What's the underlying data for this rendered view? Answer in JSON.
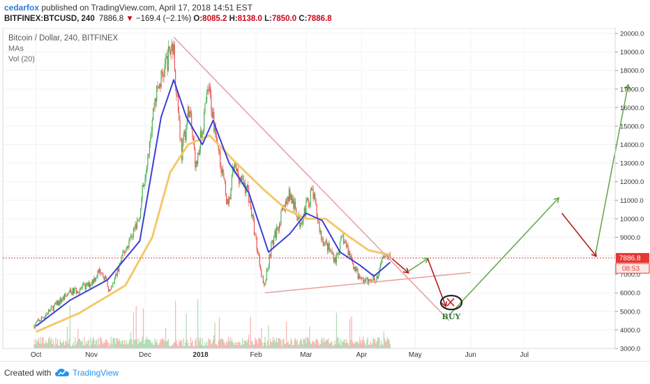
{
  "header": {
    "username": "cedarfox",
    "published_text": "published on TradingView.com, April 17, 2018 14:51 EST",
    "symbol": "BITFINEX:BTCUSD, 240",
    "last": "7886.8",
    "change_arrow": "▼",
    "change": "−169.4 (−2.1%)",
    "o_label": "O:",
    "o": "8085.2",
    "h_label": "H:",
    "h": "8138.0",
    "l_label": "L:",
    "l": "7850.0",
    "c_label": "C:",
    "c": "7886.8"
  },
  "legend": {
    "title": "Bitcoin / Dollar, 240, BITFINEX",
    "indicator1": "MAs",
    "indicator2": "Vol (20)"
  },
  "footer": {
    "created_with": "Created with",
    "brand": "TradingView"
  },
  "colors": {
    "candle_up": "#4caf50",
    "candle_down": "#ef5350",
    "ma_fast": "#3b3fd6",
    "ma_slow": "#f3c96a",
    "trendline": "#e8a2a2",
    "arrow_up": "#6aa84f",
    "arrow_down": "#b71c1c",
    "price_line": "#e53935"
  },
  "chart_data": {
    "type": "candlestick",
    "title": "Bitcoin / Dollar, 240, BITFINEX",
    "ylim": [
      3000,
      20000
    ],
    "y_ticks": [
      3000,
      4000,
      5000,
      6000,
      7000,
      8000,
      9000,
      10000,
      11000,
      12000,
      13000,
      14000,
      15000,
      16000,
      17000,
      18000,
      19000,
      20000
    ],
    "y_tick_labels": [
      "3000.0",
      "4000.0",
      "5000.0",
      "6000.0",
      "7000.0",
      "8000.0",
      "9000.0",
      "10000.0",
      "11000.0",
      "12000.0",
      "13000.0",
      "14000.0",
      "15000.0",
      "16000.0",
      "17000.0",
      "18000.0",
      "19000.0",
      "20000.0"
    ],
    "x_ticks": [
      "Oct",
      "Nov",
      "Dec",
      "2018",
      "Feb",
      "Mar",
      "Apr",
      "May",
      "Jun",
      "Jul"
    ],
    "x_tick_dates": [
      "2017-10-01",
      "2017-11-01",
      "2017-12-01",
      "2018-01-01",
      "2018-02-01",
      "2018-03-01",
      "2018-04-01",
      "2018-05-01",
      "2018-06-01",
      "2018-07-01"
    ],
    "x_end_date": "2018-08-20",
    "price_path": [
      [
        "2017-09-30",
        4200
      ],
      [
        "2017-10-12",
        5300
      ],
      [
        "2017-10-20",
        6000
      ],
      [
        "2017-10-31",
        6400
      ],
      [
        "2017-11-07",
        7300
      ],
      [
        "2017-11-12",
        6000
      ],
      [
        "2017-11-19",
        8000
      ],
      [
        "2017-11-28",
        10000
      ],
      [
        "2017-12-07",
        16500
      ],
      [
        "2017-12-17",
        19500
      ],
      [
        "2017-12-22",
        13500
      ],
      [
        "2017-12-26",
        16000
      ],
      [
        "2017-12-30",
        12800
      ],
      [
        "2018-01-06",
        17000
      ],
      [
        "2018-01-12",
        13500
      ],
      [
        "2018-01-17",
        10500
      ],
      [
        "2018-01-20",
        12800
      ],
      [
        "2018-01-28",
        11500
      ],
      [
        "2018-02-02",
        8500
      ],
      [
        "2018-02-06",
        6300
      ],
      [
        "2018-02-10",
        8500
      ],
      [
        "2018-02-20",
        11400
      ],
      [
        "2018-02-26",
        9800
      ],
      [
        "2018-03-05",
        11500
      ],
      [
        "2018-03-10",
        9000
      ],
      [
        "2018-03-18",
        7800
      ],
      [
        "2018-03-22",
        9000
      ],
      [
        "2018-03-31",
        6800
      ],
      [
        "2018-04-06",
        6600
      ],
      [
        "2018-04-11",
        6900
      ],
      [
        "2018-04-14",
        8200
      ],
      [
        "2018-04-17",
        7886.8
      ]
    ],
    "ma_fast_path": [
      [
        "2017-10-01",
        4200
      ],
      [
        "2017-10-20",
        5600
      ],
      [
        "2017-11-10",
        6700
      ],
      [
        "2017-11-28",
        8800
      ],
      [
        "2017-12-10",
        15500
      ],
      [
        "2017-12-17",
        17500
      ],
      [
        "2017-12-24",
        15500
      ],
      [
        "2018-01-02",
        14000
      ],
      [
        "2018-01-08",
        15300
      ],
      [
        "2018-01-17",
        13000
      ],
      [
        "2018-01-28",
        11400
      ],
      [
        "2018-02-08",
        8200
      ],
      [
        "2018-02-20",
        9200
      ],
      [
        "2018-03-01",
        10300
      ],
      [
        "2018-03-10",
        9900
      ],
      [
        "2018-03-20",
        8200
      ],
      [
        "2018-03-31",
        7500
      ],
      [
        "2018-04-08",
        6900
      ],
      [
        "2018-04-17",
        7650
      ]
    ],
    "ma_slow_path": [
      [
        "2017-10-01",
        3900
      ],
      [
        "2017-10-25",
        4900
      ],
      [
        "2017-11-20",
        6400
      ],
      [
        "2017-12-05",
        9000
      ],
      [
        "2017-12-15",
        12500
      ],
      [
        "2017-12-25",
        14000
      ],
      [
        "2018-01-06",
        14500
      ],
      [
        "2018-01-20",
        13100
      ],
      [
        "2018-02-05",
        11600
      ],
      [
        "2018-02-18",
        10500
      ],
      [
        "2018-03-01",
        10000
      ],
      [
        "2018-03-12",
        10000
      ],
      [
        "2018-03-24",
        9100
      ],
      [
        "2018-04-05",
        8300
      ],
      [
        "2018-04-17",
        8050
      ]
    ],
    "trendlines": [
      {
        "name": "descending-resistance",
        "from": [
          "2017-12-17",
          19800
        ],
        "to": [
          "2018-05-20",
          4500
        ]
      },
      {
        "name": "ascending-support",
        "from": [
          "2018-02-06",
          6000
        ],
        "to": [
          "2018-06-01",
          7100
        ]
      }
    ],
    "projection_arrows": [
      {
        "direction": "down",
        "from": [
          "2018-04-18",
          7850
        ],
        "to": [
          "2018-04-27",
          7100
        ]
      },
      {
        "direction": "up",
        "from": [
          "2018-04-27",
          7150
        ],
        "to": [
          "2018-05-08",
          7850
        ]
      },
      {
        "direction": "down",
        "from": [
          "2018-05-08",
          7850
        ],
        "to": [
          "2018-05-18",
          5300
        ]
      },
      {
        "direction": "up",
        "from": [
          "2018-05-20",
          4800
        ],
        "to": [
          "2018-07-20",
          11100
        ]
      },
      {
        "direction": "down",
        "from": [
          "2018-07-22",
          10300
        ],
        "to": [
          "2018-08-10",
          8000
        ]
      },
      {
        "direction": "up",
        "from": [
          "2018-08-10",
          8200
        ],
        "to": [
          "2018-08-28",
          17200
        ]
      }
    ],
    "annotations": [
      {
        "text": "BUY",
        "at": [
          "2018-05-20",
          4650
        ]
      }
    ],
    "last_price": 7886.8,
    "last_price_label": "7886.8",
    "countdown_label": "08:53"
  }
}
